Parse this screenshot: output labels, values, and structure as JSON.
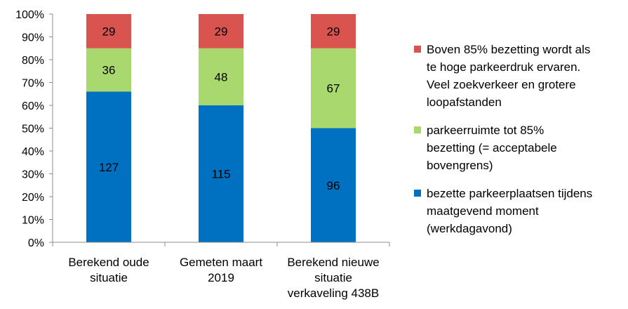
{
  "chart_data": {
    "type": "bar",
    "stacked": true,
    "percent_stacked": true,
    "categories": [
      [
        "Berekend oude",
        "situatie"
      ],
      [
        "Gemeten maart",
        "2019"
      ],
      [
        "Berekend nieuwe",
        "situatie",
        "verkaveling 438B"
      ]
    ],
    "series": [
      {
        "name": "bezette parkeerplaatsen tijdens maatgevend moment (werkdagavond)",
        "legend_lines": [
          "bezette parkeerplaatsen tijdens",
          "maatgevend moment",
          "(werkdagavond)"
        ],
        "color": "#0070c0",
        "labels": [
          127,
          115,
          96
        ],
        "percent": [
          66,
          60,
          50
        ]
      },
      {
        "name": "parkeerruimte tot 85% bezetting (= acceptabele bovengrens)",
        "legend_lines": [
          "parkeerruimte tot 85%",
          "bezetting (= acceptabele",
          "bovengrens)"
        ],
        "color": "#a9d86e",
        "labels": [
          36,
          48,
          67
        ],
        "percent": [
          19,
          25,
          35
        ]
      },
      {
        "name": "Boven 85% bezetting wordt als te hoge parkeerdruk ervaren. Veel zoekverkeer en grotere loopafstanden",
        "legend_lines": [
          "Boven 85% bezetting wordt als",
          "te hoge parkeerdruk ervaren.",
          "Veel zoekverkeer en grotere",
          "loopafstanden"
        ],
        "color": "#d9534f",
        "labels": [
          29,
          29,
          29
        ],
        "percent": [
          15,
          15,
          15
        ]
      }
    ],
    "y_ticks": [
      "0%",
      "10%",
      "20%",
      "30%",
      "40%",
      "50%",
      "60%",
      "70%",
      "80%",
      "90%",
      "100%"
    ],
    "ylim": [
      0,
      100
    ],
    "legend_position": "right",
    "grid": false
  }
}
